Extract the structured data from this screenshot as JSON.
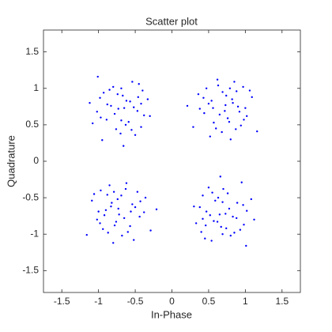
{
  "chart_data": {
    "type": "scatter",
    "title": "Scatter plot",
    "x_label": "In-Phase",
    "y_label": "Quadrature",
    "color": "#0000ff",
    "xlim": [
      -1.75,
      1.75
    ],
    "ylim": [
      -1.8,
      1.8
    ],
    "xticks": [
      -1.5,
      -1,
      -0.5,
      0,
      0.5,
      1,
      1.5
    ],
    "yticks": [
      -1.5,
      -1,
      -0.5,
      0,
      0.5,
      1,
      1.5
    ],
    "x": [
      0.76,
      0.5,
      0.88,
      0.68,
      1.0,
      0.57,
      0.82,
      0.36,
      0.73,
      0.94,
      0.63,
      1.09,
      0.44,
      0.8,
      0.54,
      0.85,
      0.29,
      1.02,
      0.65,
      0.9,
      0.47,
      0.74,
      0.6,
      0.97,
      0.38,
      0.78,
      1.16,
      0.52,
      0.83,
      0.69,
      0.92,
      0.43,
      0.87,
      0.62,
      1.06,
      0.21,
      0.72,
      0.56,
      0.79,
      0.98,
      -0.83,
      -0.63,
      -0.46,
      -1.02,
      -0.69,
      -0.89,
      -0.57,
      -0.5,
      -0.65,
      -0.93,
      -0.38,
      -0.54,
      -0.76,
      -1.12,
      -0.59,
      -0.33,
      -0.95,
      -0.8,
      -0.78,
      -0.67,
      -0.42,
      -0.52,
      -0.97,
      -0.4,
      -0.7,
      -0.88,
      -1.01,
      -1.08,
      -0.62,
      -0.47,
      -0.74,
      -0.55,
      -0.98,
      -0.3,
      -0.45,
      -0.66,
      -0.73,
      -0.69,
      -0.42,
      -0.85,
      -0.76,
      -0.5,
      -0.88,
      -0.68,
      -1.0,
      -0.57,
      -0.82,
      -0.36,
      -0.73,
      -0.94,
      -0.63,
      -1.09,
      -0.44,
      -0.8,
      -0.54,
      -0.85,
      -0.29,
      -1.02,
      -0.65,
      -0.9,
      -0.47,
      -0.74,
      -0.6,
      -0.97,
      -0.38,
      -0.78,
      -1.16,
      -0.52,
      -0.83,
      -0.69,
      -0.92,
      -0.43,
      -0.87,
      -0.62,
      -1.06,
      -0.21,
      -0.72,
      -0.56,
      -0.79,
      -0.98,
      0.83,
      0.63,
      0.46,
      1.02,
      0.69,
      0.89,
      0.57,
      0.5,
      0.65,
      0.93,
      0.38,
      0.54,
      0.76,
      1.12,
      0.59,
      0.33,
      0.95,
      0.8,
      0.78,
      0.67,
      0.42,
      0.52,
      0.97,
      0.4,
      0.7,
      0.88,
      1.01,
      1.08,
      0.62,
      0.47,
      0.74,
      0.55,
      0.98,
      0.3,
      0.45,
      0.66,
      0.73,
      0.69,
      0.42,
      0.85
    ],
    "values": [
      0.59,
      0.79,
      0.96,
      0.4,
      0.73,
      0.53,
      0.85,
      0.92,
      0.77,
      0.49,
      1.04,
      0.88,
      0.66,
      0.3,
      0.83,
      1.09,
      0.47,
      0.62,
      0.64,
      0.75,
      1.0,
      0.9,
      0.45,
      1.02,
      0.72,
      0.54,
      0.41,
      0.34,
      0.8,
      0.95,
      0.68,
      0.87,
      0.44,
      1.12,
      0.97,
      0.76,
      0.69,
      0.73,
      1.0,
      0.57,
      0.76,
      0.5,
      0.88,
      0.68,
      1.0,
      0.57,
      0.82,
      0.36,
      0.73,
      0.94,
      0.63,
      1.09,
      0.44,
      0.8,
      0.54,
      0.85,
      0.29,
      1.02,
      0.65,
      0.9,
      0.47,
      0.74,
      0.6,
      0.97,
      0.38,
      0.78,
      1.16,
      0.52,
      0.83,
      0.69,
      0.92,
      0.43,
      0.87,
      0.62,
      1.06,
      0.21,
      0.72,
      0.56,
      0.79,
      0.98,
      -0.83,
      -0.63,
      -0.46,
      -1.02,
      -0.69,
      -0.89,
      -0.57,
      -0.5,
      -0.65,
      -0.93,
      -0.38,
      -0.54,
      -0.76,
      -1.12,
      -0.59,
      -0.33,
      -0.95,
      -0.8,
      -0.78,
      -0.67,
      -0.42,
      -0.52,
      -0.97,
      -0.4,
      -0.7,
      -0.88,
      -1.01,
      -1.08,
      -0.62,
      -0.47,
      -0.74,
      -0.55,
      -0.98,
      -0.3,
      -0.45,
      -0.66,
      -0.73,
      -0.69,
      -0.42,
      -0.85,
      -0.76,
      -0.5,
      -0.88,
      -0.68,
      -1.0,
      -0.57,
      -0.82,
      -0.36,
      -0.73,
      -0.94,
      -0.63,
      -1.09,
      -0.44,
      -0.8,
      -0.54,
      -0.85,
      -0.29,
      -1.02,
      -0.65,
      -0.9,
      -0.47,
      -0.74,
      -0.6,
      -0.97,
      -0.38,
      -0.78,
      -1.16,
      -0.52,
      -0.83,
      -0.69,
      -0.92,
      -0.43,
      -0.87,
      -0.62,
      -1.06,
      -0.21,
      -0.72,
      -0.56,
      -0.79,
      -0.98
    ]
  }
}
